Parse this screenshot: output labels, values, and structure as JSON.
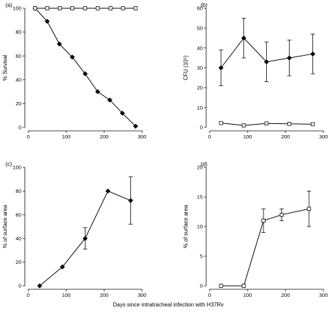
{
  "figure": {
    "common_xlabel": "Days since intratracheal infection with H37Rv"
  },
  "chart_data": [
    {
      "panel": "(a)",
      "type": "line",
      "xlabel": "",
      "ylabel": "% Survival",
      "xlim": [
        0,
        300
      ],
      "ylim": [
        0,
        100
      ],
      "xticks": [
        0,
        100,
        200,
        300
      ],
      "yticks": [
        0,
        20,
        40,
        60,
        80,
        100
      ],
      "grid": false,
      "series": [
        {
          "marker": "diamond",
          "x": [
            18,
            50,
            82,
            116,
            150,
            183,
            215,
            248,
            283
          ],
          "y": [
            100,
            89,
            70,
            59,
            45,
            30,
            23,
            12,
            1
          ]
        },
        {
          "marker": "square",
          "x": [
            18,
            50,
            83,
            116,
            150,
            183,
            217,
            250,
            283
          ],
          "y": [
            100,
            100,
            100,
            100,
            100,
            100,
            100,
            100,
            100
          ]
        }
      ]
    },
    {
      "panel": "(b)",
      "type": "line",
      "xlabel": "",
      "ylabel": "CFU (10⁵)",
      "xlim": [
        0,
        300
      ],
      "ylim": [
        0,
        60
      ],
      "xticks": [
        0,
        100,
        200,
        300
      ],
      "yticks": [
        0,
        10,
        20,
        30,
        40,
        50,
        60
      ],
      "grid": false,
      "series": [
        {
          "marker": "diamond",
          "x": [
            30,
            90,
            150,
            210,
            272
          ],
          "y": [
            30,
            45,
            33,
            35,
            37
          ],
          "error": [
            9,
            10,
            10,
            9,
            10
          ]
        },
        {
          "marker": "square",
          "x": [
            30,
            90,
            150,
            210,
            272
          ],
          "y": [
            2.2,
            1,
            2,
            1.8,
            1.6
          ],
          "error": [
            0,
            0,
            0,
            0,
            0
          ]
        }
      ]
    },
    {
      "panel": "(c)",
      "type": "line",
      "xlabel": "",
      "ylabel": "% of surface area",
      "xlim": [
        0,
        300
      ],
      "ylim": [
        0,
        100
      ],
      "xticks": [
        0,
        100,
        200,
        300
      ],
      "yticks": [
        0,
        20,
        40,
        60,
        80,
        100
      ],
      "grid": false,
      "series": [
        {
          "marker": "diamond",
          "x": [
            30,
            90,
            150,
            210,
            270
          ],
          "y": [
            0,
            16,
            40,
            80,
            72
          ],
          "error": [
            0,
            0,
            9,
            0,
            20
          ]
        }
      ]
    },
    {
      "panel": "(d)",
      "type": "line",
      "xlabel": "",
      "ylabel": "% of surface area",
      "xlim": [
        0,
        300
      ],
      "ylim": [
        0,
        20
      ],
      "xticks": [
        0,
        100,
        200,
        300
      ],
      "yticks": [
        0,
        5,
        10,
        15,
        20
      ],
      "grid": false,
      "series": [
        {
          "marker": "square",
          "x": [
            30,
            90,
            142,
            190,
            262
          ],
          "y": [
            0,
            0,
            11,
            12,
            13
          ],
          "error": [
            0,
            0,
            2,
            1,
            3
          ]
        }
      ]
    }
  ]
}
